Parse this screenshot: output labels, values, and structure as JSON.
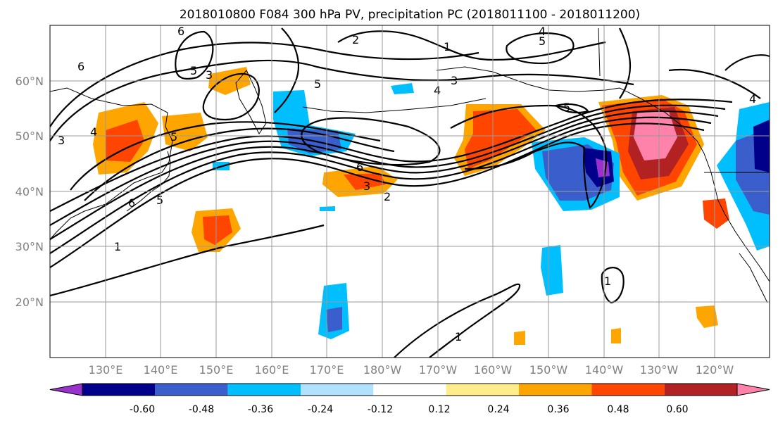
{
  "title": "2018010800 F084 300 hPa PV, precipitation PC (2018011100 - 2018011200)",
  "lat_labels": [
    "60°N",
    "50°N",
    "40°N",
    "30°N",
    "20°N"
  ],
  "lon_labels": [
    "130°E",
    "140°E",
    "150°E",
    "160°E",
    "170°E",
    "180°W",
    "170°W",
    "160°W",
    "150°W",
    "140°W",
    "130°W",
    "120°W"
  ],
  "colorbar": {
    "colors": [
      "#9932cc",
      "#00008b",
      "#3a5fcd",
      "#00bfff",
      "#b0e2ff",
      "#ffffff",
      "#ffec8b",
      "#ffa500",
      "#ff4500",
      "#b22222",
      "#ff82ab"
    ],
    "tick_labels": [
      "-0.60",
      "-0.48",
      "-0.36",
      "-0.24",
      "-0.12",
      "0.12",
      "0.24",
      "0.36",
      "0.48",
      "0.60"
    ]
  },
  "pv_contour_labels": [
    "6",
    "2",
    "4",
    "5",
    "1",
    "5",
    "3",
    "4",
    "3",
    "5",
    "4",
    "5",
    "6",
    "3",
    "2",
    "5",
    "6",
    "5",
    "1",
    "4",
    "3",
    "6",
    "1",
    "1"
  ]
}
